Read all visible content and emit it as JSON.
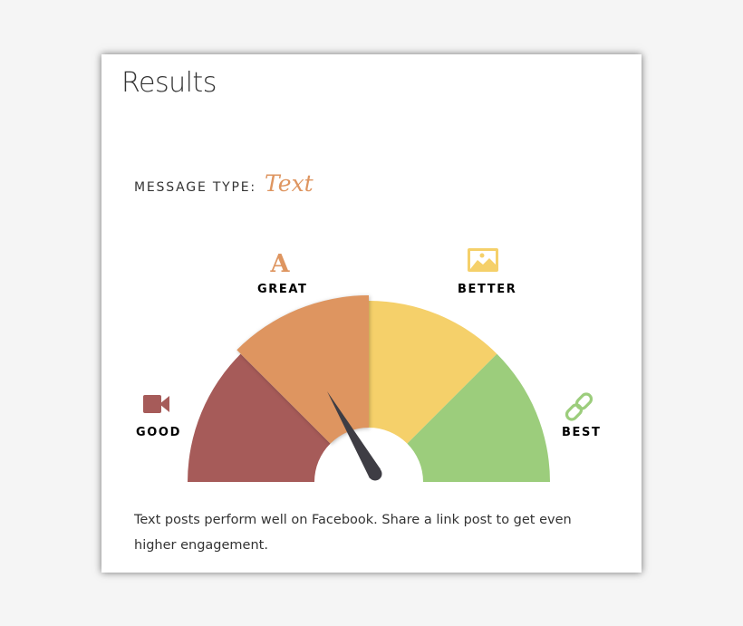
{
  "card": {
    "title": "Results",
    "message_type_label": "MESSAGE TYPE:",
    "message_type_value": "Text",
    "description": "Text posts perform well on Facebook. Share a link post to get even higher engagement."
  },
  "gauge": {
    "segments": [
      {
        "label": "GOOD",
        "icon": "video-camera-icon",
        "color": "#a65b59"
      },
      {
        "label": "GREAT",
        "icon": "letter-a-icon",
        "color": "#de9560"
      },
      {
        "label": "BETTER",
        "icon": "image-icon",
        "color": "#f5d06a"
      },
      {
        "label": "BEST",
        "icon": "link-icon",
        "color": "#9ccd7c"
      }
    ],
    "active_segment": "GREAT",
    "needle_color": "#3e3d44"
  }
}
